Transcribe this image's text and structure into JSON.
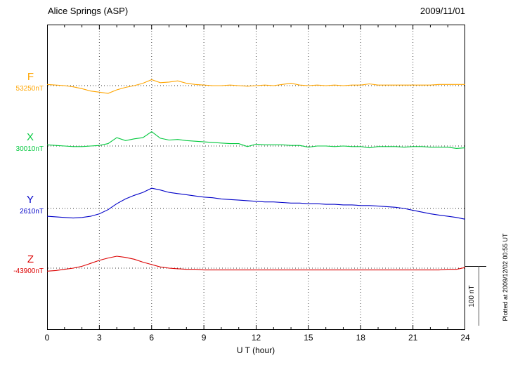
{
  "header": {
    "station": "Alice Springs (ASP)",
    "date": "2009/11/01"
  },
  "footer_note": "Plotted at 2009/12/02 00:55 UT",
  "axis": {
    "xlabel": "U T (hour)",
    "tick_hours": [
      0,
      3,
      6,
      9,
      12,
      15,
      18,
      21,
      24
    ],
    "xmin": 0,
    "xmax": 24
  },
  "scalebar": {
    "label": "100 nT",
    "nT": 100
  },
  "chart_data": {
    "type": "line",
    "title": "Alice Springs (ASP) magnetogram",
    "date": "2009/11/01",
    "xlabel": "U T (hour)",
    "x_range": [
      0,
      24
    ],
    "x_step_hours": 0.5,
    "scale_bar_nT": 100,
    "grid": "dotted vertical every 3 h; dotted baseline per component",
    "series": [
      {
        "name": "F",
        "base_label": "53250nT",
        "base_value_nT": 53250,
        "color": "#FFA500",
        "offsets_nT": [
          2,
          1,
          0,
          -2,
          -5,
          -9,
          -11,
          -13,
          -7,
          -3,
          0,
          4,
          10,
          5,
          6,
          8,
          4,
          2,
          1,
          0,
          0,
          1,
          0,
          -1,
          0,
          1,
          0,
          2,
          4,
          1,
          0,
          1,
          0,
          1,
          0,
          1,
          1,
          3,
          1,
          1,
          1,
          1,
          1,
          1,
          1,
          2,
          2,
          2,
          2
        ]
      },
      {
        "name": "X",
        "base_label": "30010nT",
        "base_value_nT": 30010,
        "color": "#00C83C",
        "offsets_nT": [
          2,
          1,
          0,
          -1,
          -1,
          0,
          1,
          4,
          14,
          9,
          12,
          14,
          24,
          13,
          10,
          11,
          9,
          8,
          7,
          6,
          5,
          4,
          4,
          -1,
          3,
          2,
          2,
          2,
          1,
          1,
          -2,
          0,
          0,
          -1,
          0,
          -1,
          -1,
          -3,
          -1,
          -1,
          -1,
          -2,
          -1,
          -1,
          -2,
          -2,
          -2,
          -4,
          -3
        ]
      },
      {
        "name": "Y",
        "base_label": "2610nT",
        "base_value_nT": 2610,
        "color": "#0000C8",
        "offsets_nT": [
          -13,
          -14,
          -15,
          -16,
          -15,
          -13,
          -9,
          -2,
          8,
          16,
          22,
          27,
          34,
          31,
          27,
          25,
          23,
          21,
          19,
          18,
          16,
          15,
          14,
          13,
          12,
          11,
          11,
          10,
          9,
          9,
          8,
          8,
          7,
          7,
          6,
          6,
          5,
          5,
          4,
          3,
          2,
          0,
          -3,
          -6,
          -9,
          -11,
          -13,
          -15,
          -18
        ]
      },
      {
        "name": "Z",
        "base_label": "-43900nT",
        "base_value_nT": -43900,
        "color": "#DC0000",
        "offsets_nT": [
          -5,
          -4,
          -2,
          0,
          3,
          8,
          13,
          17,
          20,
          18,
          15,
          10,
          6,
          2,
          0,
          -1,
          -2,
          -2,
          -3,
          -3,
          -3,
          -3,
          -3,
          -3,
          -3,
          -3,
          -3,
          -3,
          -3,
          -3,
          -3,
          -3,
          -3,
          -3,
          -3,
          -3,
          -3,
          -3,
          -3,
          -3,
          -3,
          -3,
          -3,
          -3,
          -3,
          -3,
          -2,
          -2,
          1
        ]
      }
    ]
  }
}
